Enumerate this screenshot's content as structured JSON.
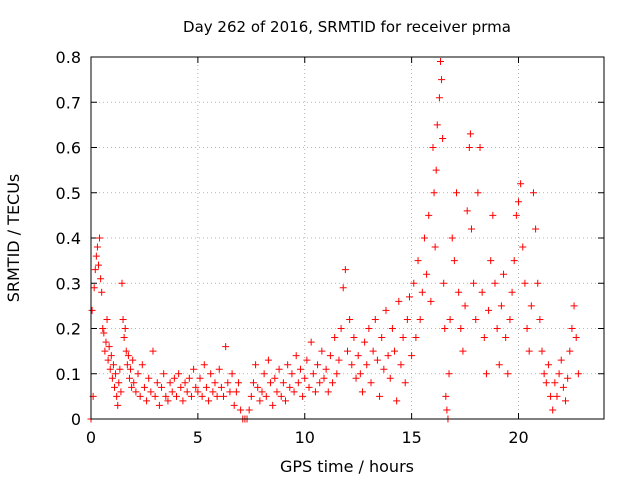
{
  "chart_data": {
    "type": "scatter",
    "title": "Day 262 of 2016, SRMTID for receiver prma",
    "xlabel": "GPS time / hours",
    "ylabel": "SRMTID / TECUs",
    "xlim": [
      0,
      24
    ],
    "ylim": [
      0,
      0.8
    ],
    "xticks": [
      0,
      5,
      10,
      15,
      20
    ],
    "xtick_labels": [
      "0",
      "5",
      "10",
      "15",
      "20"
    ],
    "yticks": [
      0,
      0.1,
      0.2,
      0.3,
      0.4,
      0.5,
      0.6,
      0.7,
      0.8
    ],
    "ytick_labels": [
      "0",
      "0.1",
      "0.2",
      "0.3",
      "0.4",
      "0.5",
      "0.6",
      "0.7",
      "0.8"
    ],
    "grid": true,
    "marker": "+",
    "color": "#ff0000",
    "series": [
      {
        "name": "SRMTID",
        "points": [
          [
            0.0,
            0.0
          ],
          [
            0.05,
            0.24
          ],
          [
            0.1,
            0.05
          ],
          [
            0.15,
            0.29
          ],
          [
            0.2,
            0.33
          ],
          [
            0.25,
            0.36
          ],
          [
            0.3,
            0.38
          ],
          [
            0.35,
            0.34
          ],
          [
            0.4,
            0.4
          ],
          [
            0.45,
            0.31
          ],
          [
            0.5,
            0.28
          ],
          [
            0.55,
            0.2
          ],
          [
            0.6,
            0.19
          ],
          [
            0.65,
            0.15
          ],
          [
            0.7,
            0.17
          ],
          [
            0.75,
            0.22
          ],
          [
            0.8,
            0.13
          ],
          [
            0.85,
            0.16
          ],
          [
            0.9,
            0.11
          ],
          [
            0.95,
            0.14
          ],
          [
            1.0,
            0.09
          ],
          [
            1.05,
            0.12
          ],
          [
            1.1,
            0.07
          ],
          [
            1.15,
            0.1
          ],
          [
            1.2,
            0.05
          ],
          [
            1.25,
            0.03
          ],
          [
            1.3,
            0.08
          ],
          [
            1.35,
            0.11
          ],
          [
            1.4,
            0.06
          ],
          [
            1.45,
            0.3
          ],
          [
            1.5,
            0.22
          ],
          [
            1.55,
            0.18
          ],
          [
            1.6,
            0.2
          ],
          [
            1.65,
            0.15
          ],
          [
            1.7,
            0.12
          ],
          [
            1.75,
            0.14
          ],
          [
            1.8,
            0.09
          ],
          [
            1.85,
            0.11
          ],
          [
            1.9,
            0.07
          ],
          [
            1.95,
            0.13
          ],
          [
            2.0,
            0.08
          ],
          [
            2.1,
            0.06
          ],
          [
            2.2,
            0.1
          ],
          [
            2.3,
            0.05
          ],
          [
            2.4,
            0.12
          ],
          [
            2.5,
            0.07
          ],
          [
            2.6,
            0.04
          ],
          [
            2.7,
            0.09
          ],
          [
            2.8,
            0.06
          ],
          [
            2.9,
            0.15
          ],
          [
            3.0,
            0.05
          ],
          [
            3.1,
            0.08
          ],
          [
            3.2,
            0.03
          ],
          [
            3.3,
            0.07
          ],
          [
            3.4,
            0.1
          ],
          [
            3.5,
            0.05
          ],
          [
            3.6,
            0.04
          ],
          [
            3.7,
            0.08
          ],
          [
            3.8,
            0.06
          ],
          [
            3.9,
            0.09
          ],
          [
            4.0,
            0.05
          ],
          [
            4.1,
            0.1
          ],
          [
            4.2,
            0.07
          ],
          [
            4.3,
            0.04
          ],
          [
            4.4,
            0.08
          ],
          [
            4.5,
            0.06
          ],
          [
            4.6,
            0.09
          ],
          [
            4.7,
            0.05
          ],
          [
            4.8,
            0.11
          ],
          [
            4.9,
            0.07
          ],
          [
            5.0,
            0.06
          ],
          [
            5.1,
            0.09
          ],
          [
            5.2,
            0.05
          ],
          [
            5.3,
            0.12
          ],
          [
            5.4,
            0.07
          ],
          [
            5.5,
            0.04
          ],
          [
            5.6,
            0.1
          ],
          [
            5.7,
            0.06
          ],
          [
            5.8,
            0.08
          ],
          [
            5.9,
            0.05
          ],
          [
            6.0,
            0.11
          ],
          [
            6.1,
            0.07
          ],
          [
            6.2,
            0.05
          ],
          [
            6.3,
            0.16
          ],
          [
            6.4,
            0.08
          ],
          [
            6.5,
            0.06
          ],
          [
            6.6,
            0.1
          ],
          [
            6.7,
            0.03
          ],
          [
            6.8,
            0.06
          ],
          [
            6.9,
            0.08
          ],
          [
            7.0,
            0.02
          ],
          [
            7.1,
            0.0
          ],
          [
            7.2,
            0.0
          ],
          [
            7.3,
            0.0
          ],
          [
            7.4,
            0.02
          ],
          [
            7.5,
            0.05
          ],
          [
            7.6,
            0.08
          ],
          [
            7.7,
            0.12
          ],
          [
            7.8,
            0.07
          ],
          [
            7.9,
            0.04
          ],
          [
            8.0,
            0.06
          ],
          [
            8.1,
            0.1
          ],
          [
            8.2,
            0.05
          ],
          [
            8.3,
            0.13
          ],
          [
            8.4,
            0.08
          ],
          [
            8.5,
            0.03
          ],
          [
            8.6,
            0.09
          ],
          [
            8.7,
            0.06
          ],
          [
            8.8,
            0.11
          ],
          [
            8.9,
            0.05
          ],
          [
            9.0,
            0.08
          ],
          [
            9.1,
            0.04
          ],
          [
            9.2,
            0.12
          ],
          [
            9.3,
            0.07
          ],
          [
            9.4,
            0.1
          ],
          [
            9.5,
            0.06
          ],
          [
            9.6,
            0.14
          ],
          [
            9.7,
            0.08
          ],
          [
            9.8,
            0.11
          ],
          [
            9.9,
            0.05
          ],
          [
            10.0,
            0.09
          ],
          [
            10.1,
            0.13
          ],
          [
            10.2,
            0.07
          ],
          [
            10.3,
            0.17
          ],
          [
            10.4,
            0.1
          ],
          [
            10.5,
            0.06
          ],
          [
            10.6,
            0.12
          ],
          [
            10.7,
            0.08
          ],
          [
            10.8,
            0.15
          ],
          [
            10.9,
            0.09
          ],
          [
            11.0,
            0.11
          ],
          [
            11.1,
            0.06
          ],
          [
            11.2,
            0.14
          ],
          [
            11.3,
            0.08
          ],
          [
            11.4,
            0.18
          ],
          [
            11.5,
            0.1
          ],
          [
            11.6,
            0.13
          ],
          [
            11.7,
            0.2
          ],
          [
            11.8,
            0.29
          ],
          [
            11.9,
            0.33
          ],
          [
            12.0,
            0.15
          ],
          [
            12.1,
            0.22
          ],
          [
            12.2,
            0.12
          ],
          [
            12.3,
            0.18
          ],
          [
            12.4,
            0.09
          ],
          [
            12.5,
            0.14
          ],
          [
            12.6,
            0.1
          ],
          [
            12.7,
            0.06
          ],
          [
            12.8,
            0.17
          ],
          [
            12.9,
            0.12
          ],
          [
            13.0,
            0.2
          ],
          [
            13.1,
            0.08
          ],
          [
            13.2,
            0.15
          ],
          [
            13.3,
            0.22
          ],
          [
            13.4,
            0.13
          ],
          [
            13.5,
            0.05
          ],
          [
            13.6,
            0.18
          ],
          [
            13.7,
            0.11
          ],
          [
            13.8,
            0.24
          ],
          [
            13.9,
            0.14
          ],
          [
            14.0,
            0.09
          ],
          [
            14.1,
            0.2
          ],
          [
            14.2,
            0.15
          ],
          [
            14.3,
            0.04
          ],
          [
            14.4,
            0.26
          ],
          [
            14.5,
            0.12
          ],
          [
            14.6,
            0.18
          ],
          [
            14.7,
            0.08
          ],
          [
            14.8,
            0.22
          ],
          [
            14.9,
            0.27
          ],
          [
            15.0,
            0.14
          ],
          [
            15.1,
            0.3
          ],
          [
            15.2,
            0.18
          ],
          [
            15.3,
            0.35
          ],
          [
            15.4,
            0.22
          ],
          [
            15.5,
            0.28
          ],
          [
            15.6,
            0.4
          ],
          [
            15.7,
            0.32
          ],
          [
            15.8,
            0.45
          ],
          [
            15.9,
            0.26
          ],
          [
            16.0,
            0.6
          ],
          [
            16.05,
            0.5
          ],
          [
            16.1,
            0.38
          ],
          [
            16.15,
            0.55
          ],
          [
            16.2,
            0.65
          ],
          [
            16.3,
            0.71
          ],
          [
            16.35,
            0.79
          ],
          [
            16.4,
            0.75
          ],
          [
            16.45,
            0.62
          ],
          [
            16.5,
            0.3
          ],
          [
            16.55,
            0.2
          ],
          [
            16.6,
            0.05
          ],
          [
            16.65,
            0.02
          ],
          [
            16.7,
            0.0
          ],
          [
            16.75,
            0.1
          ],
          [
            16.8,
            0.22
          ],
          [
            16.9,
            0.4
          ],
          [
            17.0,
            0.35
          ],
          [
            17.1,
            0.5
          ],
          [
            17.2,
            0.28
          ],
          [
            17.3,
            0.2
          ],
          [
            17.4,
            0.15
          ],
          [
            17.5,
            0.25
          ],
          [
            17.6,
            0.46
          ],
          [
            17.7,
            0.6
          ],
          [
            17.75,
            0.63
          ],
          [
            17.8,
            0.42
          ],
          [
            17.9,
            0.3
          ],
          [
            18.0,
            0.22
          ],
          [
            18.1,
            0.5
          ],
          [
            18.2,
            0.6
          ],
          [
            18.3,
            0.28
          ],
          [
            18.4,
            0.18
          ],
          [
            18.5,
            0.1
          ],
          [
            18.6,
            0.24
          ],
          [
            18.7,
            0.35
          ],
          [
            18.8,
            0.45
          ],
          [
            18.9,
            0.3
          ],
          [
            19.0,
            0.2
          ],
          [
            19.1,
            0.12
          ],
          [
            19.2,
            0.25
          ],
          [
            19.3,
            0.32
          ],
          [
            19.4,
            0.18
          ],
          [
            19.5,
            0.1
          ],
          [
            19.6,
            0.22
          ],
          [
            19.7,
            0.28
          ],
          [
            19.8,
            0.35
          ],
          [
            19.9,
            0.45
          ],
          [
            20.0,
            0.48
          ],
          [
            20.1,
            0.52
          ],
          [
            20.2,
            0.38
          ],
          [
            20.3,
            0.3
          ],
          [
            20.4,
            0.2
          ],
          [
            20.5,
            0.15
          ],
          [
            20.6,
            0.25
          ],
          [
            20.7,
            0.5
          ],
          [
            20.8,
            0.42
          ],
          [
            20.9,
            0.3
          ],
          [
            21.0,
            0.22
          ],
          [
            21.1,
            0.15
          ],
          [
            21.2,
            0.1
          ],
          [
            21.3,
            0.08
          ],
          [
            21.4,
            0.12
          ],
          [
            21.5,
            0.05
          ],
          [
            21.6,
            0.02
          ],
          [
            21.7,
            0.08
          ],
          [
            21.8,
            0.05
          ],
          [
            21.9,
            0.1
          ],
          [
            22.0,
            0.13
          ],
          [
            22.1,
            0.07
          ],
          [
            22.2,
            0.04
          ],
          [
            22.3,
            0.09
          ],
          [
            22.4,
            0.15
          ],
          [
            22.5,
            0.2
          ],
          [
            22.6,
            0.25
          ],
          [
            22.7,
            0.18
          ],
          [
            22.8,
            0.1
          ]
        ]
      }
    ]
  }
}
